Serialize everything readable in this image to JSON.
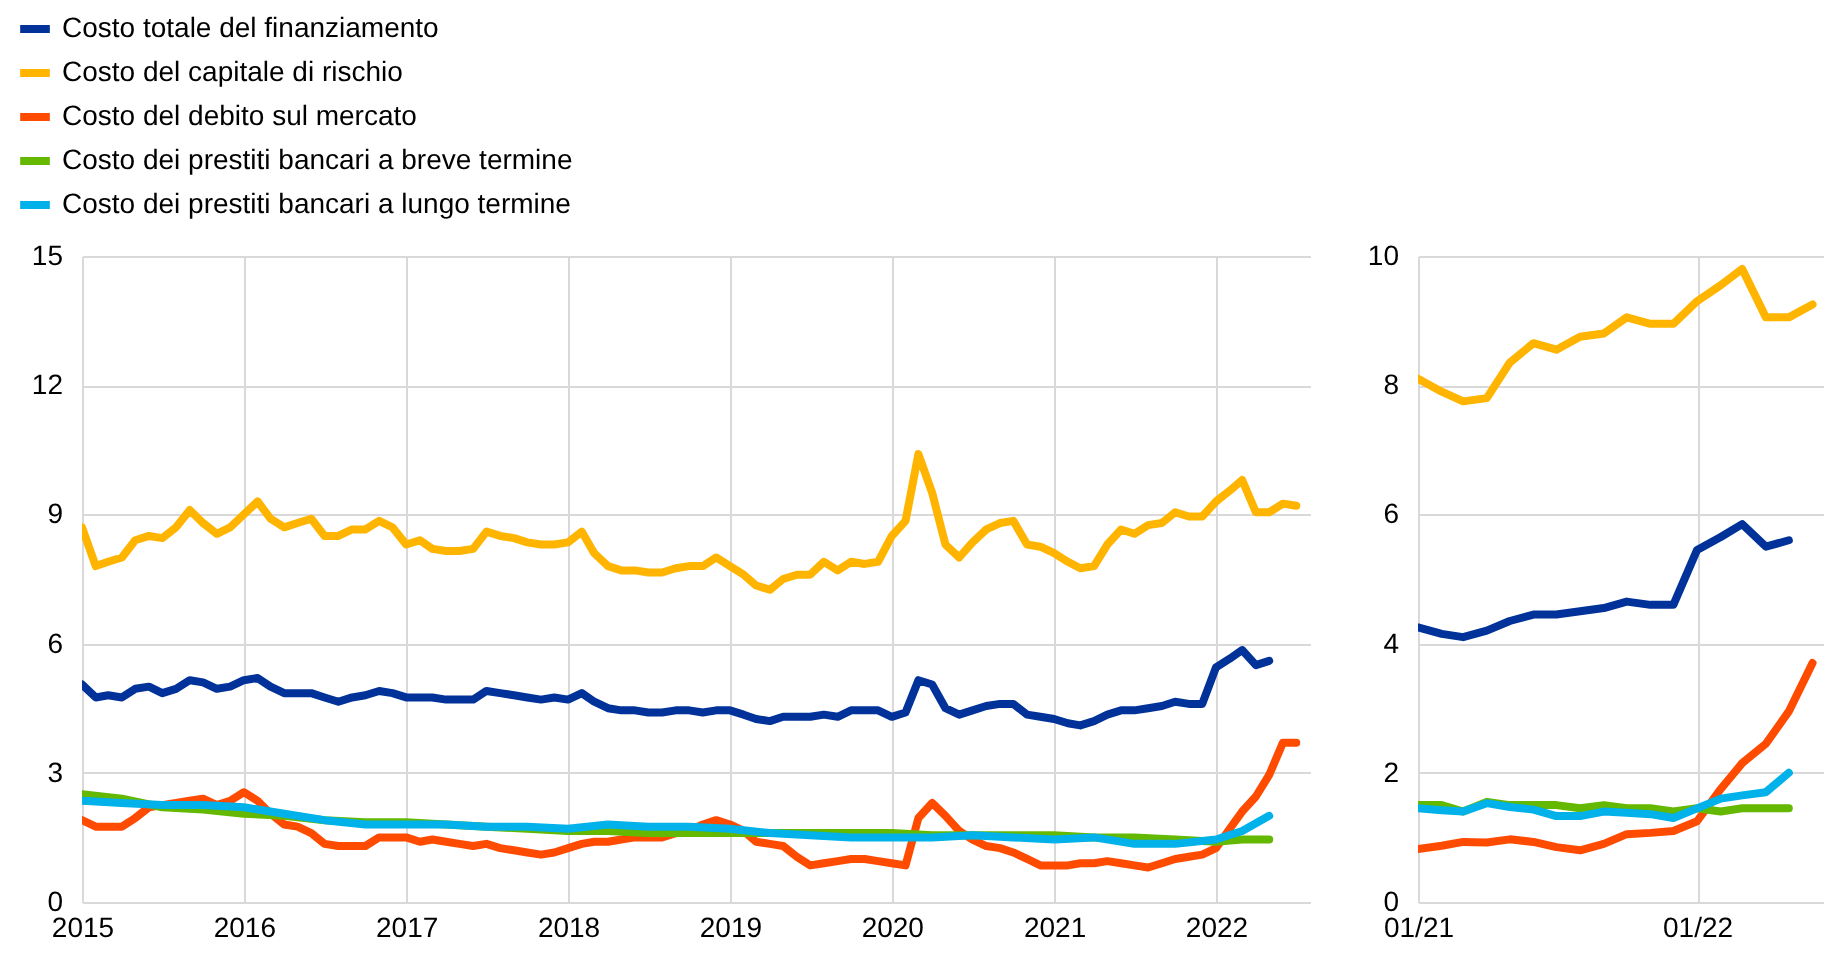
{
  "chart_data": [
    {
      "type": "line",
      "legend": "top left",
      "grid": true,
      "xlim": [
        "2015-01",
        "2022-08"
      ],
      "xticks": [
        "2015",
        "2016",
        "2017",
        "2018",
        "2019",
        "2020",
        "2021",
        "2022"
      ],
      "ylim": [
        0,
        15
      ],
      "yticks": [
        0,
        3,
        6,
        9,
        12,
        15
      ],
      "series": [
        {
          "name": "Costo totale del finanziamento",
          "color": "#003299",
          "x": [
            "2015-01",
            "2015-02",
            "2015-03",
            "2015-04",
            "2015-05",
            "2015-06",
            "2015-07",
            "2015-08",
            "2015-09",
            "2015-10",
            "2015-11",
            "2015-12",
            "2016-01",
            "2016-02",
            "2016-03",
            "2016-04",
            "2016-05",
            "2016-06",
            "2016-07",
            "2016-08",
            "2016-09",
            "2016-10",
            "2016-11",
            "2016-12",
            "2017-01",
            "2017-02",
            "2017-03",
            "2017-04",
            "2017-05",
            "2017-06",
            "2017-07",
            "2017-08",
            "2017-09",
            "2017-10",
            "2017-11",
            "2017-12",
            "2018-01",
            "2018-02",
            "2018-03",
            "2018-04",
            "2018-05",
            "2018-06",
            "2018-07",
            "2018-08",
            "2018-09",
            "2018-10",
            "2018-11",
            "2018-12",
            "2019-01",
            "2019-02",
            "2019-03",
            "2019-04",
            "2019-05",
            "2019-06",
            "2019-07",
            "2019-08",
            "2019-09",
            "2019-10",
            "2019-11",
            "2019-12",
            "2020-01",
            "2020-02",
            "2020-03",
            "2020-04",
            "2020-05",
            "2020-06",
            "2020-07",
            "2020-08",
            "2020-09",
            "2020-10",
            "2020-11",
            "2020-12",
            "2021-01",
            "2021-02",
            "2021-03",
            "2021-04",
            "2021-05",
            "2021-06",
            "2021-07",
            "2021-08",
            "2021-09",
            "2021-10",
            "2021-11",
            "2021-12",
            "2022-01",
            "2022-02",
            "2022-03",
            "2022-04",
            "2022-05"
          ],
          "values": [
            5.05,
            4.75,
            4.8,
            4.75,
            4.95,
            5.0,
            4.85,
            4.95,
            5.15,
            5.1,
            4.95,
            5.0,
            5.15,
            5.2,
            5.0,
            4.85,
            4.85,
            4.85,
            4.75,
            4.65,
            4.75,
            4.8,
            4.9,
            4.85,
            4.75,
            4.75,
            4.75,
            4.7,
            4.7,
            4.7,
            4.9,
            4.85,
            4.8,
            4.75,
            4.7,
            4.75,
            4.7,
            4.85,
            4.65,
            4.5,
            4.45,
            4.45,
            4.4,
            4.4,
            4.45,
            4.45,
            4.4,
            4.45,
            4.45,
            4.35,
            4.25,
            4.2,
            4.3,
            4.3,
            4.3,
            4.35,
            4.3,
            4.45,
            4.45,
            4.45,
            4.3,
            4.4,
            5.15,
            5.05,
            4.5,
            4.35,
            4.45,
            4.55,
            4.6,
            4.6,
            4.35,
            4.3,
            4.25,
            4.15,
            4.1,
            4.2,
            4.35,
            4.45,
            4.45,
            4.5,
            4.55,
            4.65,
            4.6,
            4.6,
            5.45,
            5.65,
            5.85,
            5.5,
            5.6
          ]
        },
        {
          "name": "Costo del capitale di rischio",
          "color": "#ffb400",
          "x": [
            "2015-01",
            "2015-02",
            "2015-03",
            "2015-04",
            "2015-05",
            "2015-06",
            "2015-07",
            "2015-08",
            "2015-09",
            "2015-10",
            "2015-11",
            "2015-12",
            "2016-01",
            "2016-02",
            "2016-03",
            "2016-04",
            "2016-05",
            "2016-06",
            "2016-07",
            "2016-08",
            "2016-09",
            "2016-10",
            "2016-11",
            "2016-12",
            "2017-01",
            "2017-02",
            "2017-03",
            "2017-04",
            "2017-05",
            "2017-06",
            "2017-07",
            "2017-08",
            "2017-09",
            "2017-10",
            "2017-11",
            "2017-12",
            "2018-01",
            "2018-02",
            "2018-03",
            "2018-04",
            "2018-05",
            "2018-06",
            "2018-07",
            "2018-08",
            "2018-09",
            "2018-10",
            "2018-11",
            "2018-12",
            "2019-01",
            "2019-02",
            "2019-03",
            "2019-04",
            "2019-05",
            "2019-06",
            "2019-07",
            "2019-08",
            "2019-09",
            "2019-10",
            "2019-11",
            "2019-12",
            "2020-01",
            "2020-02",
            "2020-03",
            "2020-04",
            "2020-05",
            "2020-06",
            "2020-07",
            "2020-08",
            "2020-09",
            "2020-10",
            "2020-11",
            "2020-12",
            "2021-01",
            "2021-02",
            "2021-03",
            "2021-04",
            "2021-05",
            "2021-06",
            "2021-07",
            "2021-08",
            "2021-09",
            "2021-10",
            "2021-11",
            "2021-12",
            "2022-01",
            "2022-02",
            "2022-03",
            "2022-04",
            "2022-05",
            "2022-06",
            "2022-07"
          ],
          "values": [
            8.7,
            7.8,
            7.9,
            8.0,
            8.4,
            8.5,
            8.45,
            8.7,
            9.1,
            8.8,
            8.55,
            8.7,
            9.0,
            9.3,
            8.9,
            8.7,
            8.8,
            8.9,
            8.5,
            8.5,
            8.65,
            8.65,
            8.85,
            8.7,
            8.3,
            8.4,
            8.2,
            8.15,
            8.15,
            8.2,
            8.6,
            8.5,
            8.45,
            8.35,
            8.3,
            8.3,
            8.35,
            8.6,
            8.1,
            7.8,
            7.7,
            7.7,
            7.65,
            7.65,
            7.75,
            7.8,
            7.8,
            8.0,
            7.8,
            7.6,
            7.35,
            7.25,
            7.5,
            7.6,
            7.6,
            7.9,
            7.7,
            7.9,
            7.85,
            7.9,
            8.5,
            8.85,
            10.4,
            9.5,
            8.3,
            8.0,
            8.35,
            8.65,
            8.8,
            8.85,
            8.3,
            8.25,
            8.1,
            7.9,
            7.75,
            7.8,
            8.3,
            8.65,
            8.55,
            8.75,
            8.8,
            9.05,
            8.95,
            8.95,
            9.3,
            9.55,
            9.8,
            9.05,
            9.05,
            9.25,
            9.2
          ]
        },
        {
          "name": "Costo del debito sul mercato",
          "color": "#ff4b00",
          "x": [
            "2015-01",
            "2015-02",
            "2015-03",
            "2015-04",
            "2015-05",
            "2015-06",
            "2015-07",
            "2015-08",
            "2015-09",
            "2015-10",
            "2015-11",
            "2015-12",
            "2016-01",
            "2016-02",
            "2016-03",
            "2016-04",
            "2016-05",
            "2016-06",
            "2016-07",
            "2016-08",
            "2016-09",
            "2016-10",
            "2016-11",
            "2016-12",
            "2017-01",
            "2017-02",
            "2017-03",
            "2017-04",
            "2017-05",
            "2017-06",
            "2017-07",
            "2017-08",
            "2017-09",
            "2017-10",
            "2017-11",
            "2017-12",
            "2018-01",
            "2018-02",
            "2018-03",
            "2018-04",
            "2018-05",
            "2018-06",
            "2018-07",
            "2018-08",
            "2018-09",
            "2018-10",
            "2018-11",
            "2018-12",
            "2019-01",
            "2019-02",
            "2019-03",
            "2019-04",
            "2019-05",
            "2019-06",
            "2019-07",
            "2019-08",
            "2019-09",
            "2019-10",
            "2019-11",
            "2019-12",
            "2020-01",
            "2020-02",
            "2020-03",
            "2020-04",
            "2020-05",
            "2020-06",
            "2020-07",
            "2020-08",
            "2020-09",
            "2020-10",
            "2020-11",
            "2020-12",
            "2021-01",
            "2021-02",
            "2021-03",
            "2021-04",
            "2021-05",
            "2021-06",
            "2021-07",
            "2021-08",
            "2021-09",
            "2021-10",
            "2021-11",
            "2021-12",
            "2022-01",
            "2022-02",
            "2022-03",
            "2022-04",
            "2022-05",
            "2022-06",
            "2022-07"
          ],
          "values": [
            1.9,
            1.75,
            1.75,
            1.75,
            1.95,
            2.2,
            2.25,
            2.3,
            2.35,
            2.4,
            2.25,
            2.35,
            2.55,
            2.35,
            2.05,
            1.8,
            1.75,
            1.6,
            1.35,
            1.3,
            1.3,
            1.3,
            1.5,
            1.5,
            1.5,
            1.4,
            1.45,
            1.4,
            1.35,
            1.3,
            1.35,
            1.25,
            1.2,
            1.15,
            1.1,
            1.15,
            1.25,
            1.35,
            1.4,
            1.4,
            1.45,
            1.5,
            1.5,
            1.5,
            1.6,
            1.65,
            1.8,
            1.9,
            1.8,
            1.65,
            1.4,
            1.35,
            1.3,
            1.05,
            0.85,
            0.9,
            0.95,
            1.0,
            1.0,
            0.95,
            0.9,
            0.85,
            1.95,
            2.3,
            2.0,
            1.65,
            1.45,
            1.3,
            1.25,
            1.15,
            1.0,
            0.85,
            0.85,
            0.85,
            0.9,
            0.9,
            0.95,
            0.9,
            0.85,
            0.8,
            0.9,
            1.0,
            1.05,
            1.1,
            1.25,
            1.7,
            2.1,
            2.45,
            2.95,
            3.7,
            3.7
          ]
        },
        {
          "name": "Costo dei prestiti bancari a breve termine",
          "color": "#65b800",
          "x": [
            "2015-01",
            "2015-04",
            "2015-07",
            "2015-10",
            "2016-01",
            "2016-04",
            "2016-07",
            "2016-10",
            "2017-01",
            "2017-04",
            "2017-07",
            "2017-10",
            "2018-01",
            "2018-04",
            "2018-07",
            "2018-10",
            "2019-01",
            "2019-04",
            "2019-07",
            "2019-10",
            "2020-01",
            "2020-04",
            "2020-07",
            "2020-10",
            "2021-01",
            "2021-04",
            "2021-07",
            "2021-10",
            "2022-01",
            "2022-03",
            "2022-05"
          ],
          "values": [
            2.5,
            2.4,
            2.2,
            2.15,
            2.05,
            2.0,
            1.9,
            1.85,
            1.85,
            1.8,
            1.75,
            1.7,
            1.65,
            1.65,
            1.6,
            1.6,
            1.6,
            1.6,
            1.6,
            1.6,
            1.6,
            1.55,
            1.55,
            1.55,
            1.55,
            1.5,
            1.5,
            1.45,
            1.4,
            1.45,
            1.45
          ]
        },
        {
          "name": "Costo dei prestiti bancari a lungo termine",
          "color": "#00b1ea",
          "x": [
            "2015-01",
            "2015-04",
            "2015-07",
            "2015-10",
            "2016-01",
            "2016-04",
            "2016-07",
            "2016-10",
            "2017-01",
            "2017-04",
            "2017-07",
            "2017-10",
            "2018-01",
            "2018-04",
            "2018-07",
            "2018-10",
            "2019-01",
            "2019-04",
            "2019-07",
            "2019-10",
            "2020-01",
            "2020-04",
            "2020-07",
            "2020-10",
            "2021-01",
            "2021-04",
            "2021-07",
            "2021-10",
            "2022-01",
            "2022-03",
            "2022-05"
          ],
          "values": [
            2.35,
            2.3,
            2.25,
            2.25,
            2.2,
            2.05,
            1.9,
            1.8,
            1.8,
            1.8,
            1.75,
            1.75,
            1.7,
            1.8,
            1.75,
            1.75,
            1.7,
            1.6,
            1.55,
            1.5,
            1.5,
            1.5,
            1.55,
            1.5,
            1.45,
            1.5,
            1.35,
            1.35,
            1.45,
            1.65,
            2.0
          ]
        }
      ]
    },
    {
      "type": "line",
      "grid": true,
      "xlim": [
        "2021-01",
        "2022-06-16"
      ],
      "xticks": [
        {
          "value": "2021-01",
          "label": "01/21"
        },
        {
          "value": "2022-01",
          "label": "01/22"
        }
      ],
      "ylim": [
        0,
        10
      ],
      "yticks": [
        0,
        2,
        4,
        6,
        8,
        10
      ],
      "series": [
        {
          "color": "#003299",
          "x": [
            "2021-01",
            "2021-02",
            "2021-03",
            "2021-04",
            "2021-05",
            "2021-06",
            "2021-07",
            "2021-08",
            "2021-09",
            "2021-10",
            "2021-11",
            "2021-12",
            "2022-01",
            "2022-02",
            "2022-03",
            "2022-04",
            "2022-05"
          ],
          "values": [
            4.25,
            4.15,
            4.1,
            4.2,
            4.35,
            4.45,
            4.45,
            4.5,
            4.55,
            4.65,
            4.6,
            4.6,
            5.45,
            5.65,
            5.85,
            5.5,
            5.6
          ]
        },
        {
          "color": "#ffb400",
          "x": [
            "2021-01",
            "2021-02",
            "2021-03",
            "2021-04",
            "2021-05",
            "2021-06",
            "2021-07",
            "2021-08",
            "2021-09",
            "2021-10",
            "2021-11",
            "2021-12",
            "2022-01",
            "2022-02",
            "2022-03",
            "2022-04",
            "2022-05",
            "2022-06"
          ],
          "values": [
            8.1,
            7.9,
            7.75,
            7.8,
            8.35,
            8.65,
            8.55,
            8.75,
            8.8,
            9.05,
            8.95,
            8.95,
            9.3,
            9.55,
            9.8,
            9.05,
            9.05,
            9.25
          ]
        },
        {
          "color": "#ff4b00",
          "x": [
            "2021-01",
            "2021-02",
            "2021-03",
            "2021-04",
            "2021-05",
            "2021-06",
            "2021-07",
            "2021-08",
            "2021-09",
            "2021-10",
            "2021-11",
            "2021-12",
            "2022-01",
            "2022-02",
            "2022-03",
            "2022-04",
            "2022-05",
            "2022-06"
          ],
          "values": [
            0.82,
            0.87,
            0.93,
            0.92,
            0.97,
            0.93,
            0.85,
            0.8,
            0.9,
            1.05,
            1.07,
            1.1,
            1.25,
            1.75,
            2.15,
            2.45,
            2.95,
            3.7
          ]
        },
        {
          "color": "#65b800",
          "x": [
            "2021-01",
            "2021-02",
            "2021-03",
            "2021-04",
            "2021-05",
            "2021-06",
            "2021-07",
            "2021-08",
            "2021-09",
            "2021-10",
            "2021-11",
            "2021-12",
            "2022-01",
            "2022-02",
            "2022-03",
            "2022-04",
            "2022-05"
          ],
          "values": [
            1.5,
            1.5,
            1.4,
            1.55,
            1.5,
            1.5,
            1.5,
            1.45,
            1.5,
            1.45,
            1.45,
            1.4,
            1.45,
            1.4,
            1.45,
            1.45,
            1.45
          ]
        },
        {
          "color": "#00b1ea",
          "x": [
            "2021-01",
            "2021-02",
            "2021-03",
            "2021-04",
            "2021-05",
            "2021-06",
            "2021-07",
            "2021-08",
            "2021-09",
            "2021-10",
            "2021-11",
            "2021-12",
            "2022-01",
            "2022-02",
            "2022-03",
            "2022-04",
            "2022-05"
          ],
          "values": [
            1.45,
            1.42,
            1.4,
            1.53,
            1.47,
            1.43,
            1.33,
            1.33,
            1.4,
            1.38,
            1.36,
            1.3,
            1.45,
            1.6,
            1.65,
            1.7,
            2.0
          ]
        }
      ]
    }
  ]
}
